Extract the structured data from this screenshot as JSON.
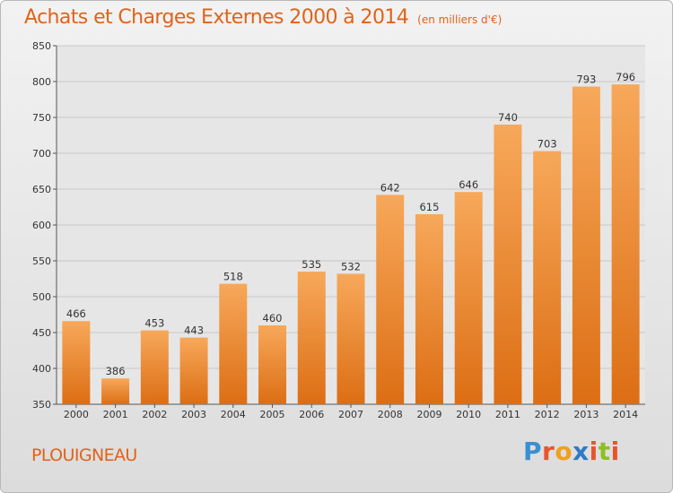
{
  "title": "Achats et Charges Externes 2000 à 2014",
  "subtitle": "(en milliers d'€)",
  "place": "PLOUIGNEAU",
  "logo": {
    "letters": [
      "P",
      "r",
      "o",
      "x",
      "i",
      "t",
      "i"
    ],
    "colors": [
      "#3a8fd0",
      "#e8552a",
      "#f0a020",
      "#2a7bc8",
      "#e8552a",
      "#8cbf26",
      "#e8552a"
    ]
  },
  "colors": {
    "bar": "#f0862a",
    "bar_light": "#f7a85a",
    "accent": "#e0631a"
  },
  "chart_data": {
    "type": "bar",
    "title": "Achats et Charges Externes 2000 à 2014",
    "subtitle": "(en milliers d'€)",
    "categories": [
      "2000",
      "2001",
      "2002",
      "2003",
      "2004",
      "2005",
      "2006",
      "2007",
      "2008",
      "2009",
      "2010",
      "2011",
      "2012",
      "2013",
      "2014"
    ],
    "values": [
      466,
      386,
      453,
      443,
      518,
      460,
      535,
      532,
      642,
      615,
      646,
      740,
      703,
      793,
      796
    ],
    "ylim": [
      350,
      850
    ],
    "yticks": [
      350,
      400,
      450,
      500,
      550,
      600,
      650,
      700,
      750,
      800,
      850
    ],
    "grid": true
  }
}
